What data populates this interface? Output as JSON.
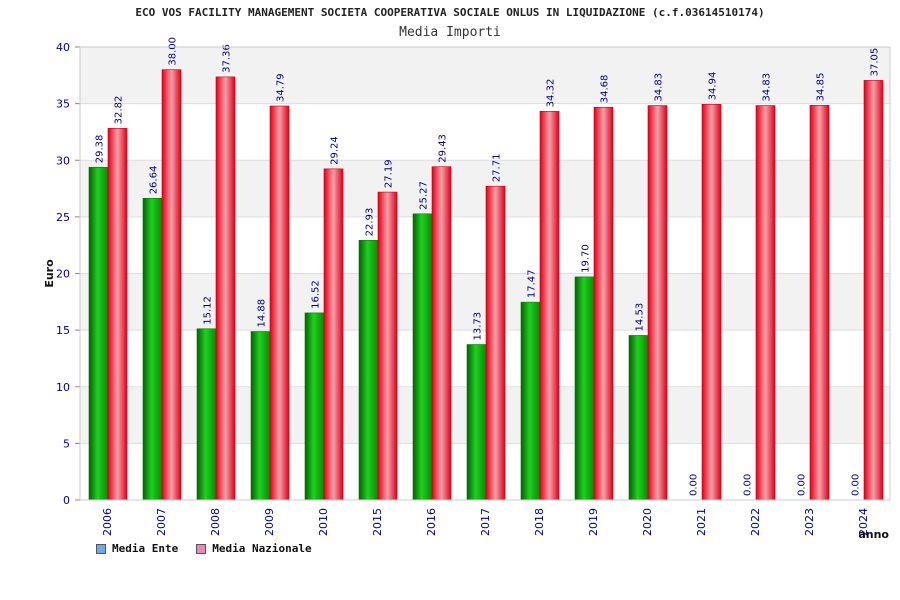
{
  "title": "ECO VOS FACILITY MANAGEMENT SOCIETA COOPERATIVA SOCIALE ONLUS IN LIQUIDAZIONE (c.f.03614510174)",
  "subtitle": "Media Importi",
  "colors": {
    "ente": "#0fa10f",
    "nazionale": "#e8182c",
    "ente_legend": "#6fa8e8",
    "nazionale_legend": "#e98ab5",
    "tick_label": "#00008b"
  },
  "chart_data": {
    "type": "bar",
    "title": "ECO VOS FACILITY MANAGEMENT SOCIETA COOPERATIVA SOCIALE ONLUS IN LIQUIDAZIONE (c.f.03614510174)",
    "subtitle": "Media Importi",
    "xlabel": "anno",
    "ylabel": "Euro",
    "ylim": [
      0,
      40
    ],
    "yticks": [
      0,
      5,
      10,
      15,
      20,
      25,
      30,
      35,
      40
    ],
    "grid": true,
    "legend_position": "bottom-left",
    "categories": [
      "2006",
      "2007",
      "2008",
      "2009",
      "2010",
      "2015",
      "2016",
      "2017",
      "2018",
      "2019",
      "2020",
      "2021",
      "2022",
      "2023",
      "2024"
    ],
    "series": [
      {
        "name": "Media Ente",
        "values": [
          29.38,
          26.64,
          15.12,
          14.88,
          16.52,
          22.93,
          25.27,
          13.73,
          17.47,
          19.7,
          14.53,
          0.0,
          0.0,
          0.0,
          0.0
        ],
        "labels": [
          "29.38",
          "26.64",
          "15.12",
          "14.88",
          "16.52",
          "22.93",
          "25.27",
          "13.73",
          "17.47",
          "19.70",
          "14.53",
          "0.00",
          "0.00",
          "0.00",
          "0.00"
        ]
      },
      {
        "name": "Media Nazionale",
        "values": [
          32.82,
          38.0,
          37.36,
          34.79,
          29.24,
          27.19,
          29.43,
          27.71,
          34.32,
          34.68,
          34.83,
          34.94,
          34.83,
          34.85,
          37.05
        ],
        "labels": [
          "32.82",
          "38.00",
          "37.36",
          "34.79",
          "29.24",
          "27.19",
          "29.43",
          "27.71",
          "34.32",
          "34.68",
          "34.83",
          "34.94",
          "34.83",
          "34.85",
          "37.05"
        ]
      }
    ]
  }
}
